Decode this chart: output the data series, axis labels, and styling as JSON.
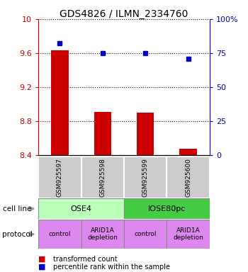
{
  "title": "GDS4826 / ILMN_2334760",
  "samples": [
    "GSM925597",
    "GSM925598",
    "GSM925599",
    "GSM925600"
  ],
  "bar_values": [
    9.63,
    8.91,
    8.9,
    8.47
  ],
  "blue_dots": [
    82,
    75,
    75,
    71
  ],
  "ylim_left": [
    8.4,
    10.0
  ],
  "ylim_right": [
    0,
    100
  ],
  "yticks_left": [
    8.4,
    8.8,
    9.2,
    9.6,
    10.0
  ],
  "yticks_right": [
    0,
    25,
    50,
    75,
    100
  ],
  "ytick_labels_left": [
    "8.4",
    "8.8",
    "9.2",
    "9.6",
    "10"
  ],
  "ytick_labels_right": [
    "0",
    "25",
    "50",
    "75",
    "100%"
  ],
  "bar_color": "#cc0000",
  "dot_color": "#0000cc",
  "bar_bottom": 8.4,
  "cell_line_labels": [
    "OSE4",
    "IOSE80pc"
  ],
  "cell_line_colors": [
    "#bbffbb",
    "#44cc44"
  ],
  "cell_line_spans": [
    [
      0,
      1
    ],
    [
      2,
      3
    ]
  ],
  "protocol_labels": [
    "control",
    "ARID1A\ndepletion",
    "control",
    "ARID1A\ndepletion"
  ],
  "protocol_color": "#dd88ee",
  "sample_box_color": "#cccccc",
  "grid_color": "black",
  "grid_linestyle": ":",
  "grid_linewidth": 0.8
}
